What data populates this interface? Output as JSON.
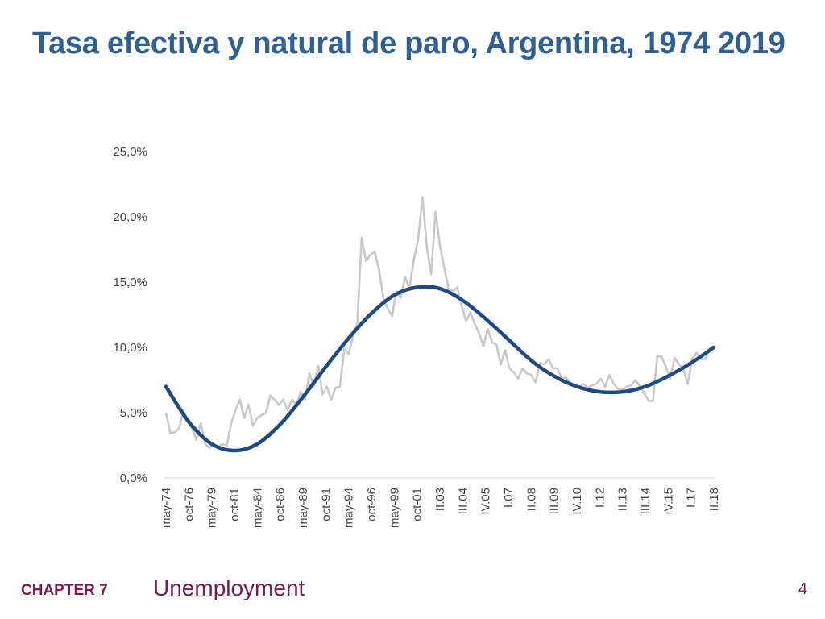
{
  "slide": {
    "title": "Tasa efectiva y natural de paro, Argentina, 1974 2019"
  },
  "footer": {
    "chapter": "CHAPTER 7",
    "topic": "Unemployment",
    "page": "4"
  },
  "colors": {
    "title": "#2e5f95",
    "footer": "#7a1b4a",
    "effective_series": "#c8c8c8",
    "natural_series": "#1f4a80",
    "axis": "#d0d0d0"
  },
  "chart_data": {
    "type": "line",
    "title": "",
    "xlabel": "",
    "ylabel": "",
    "ylim": [
      0,
      25
    ],
    "yticks": [
      "0,0%",
      "5,0%",
      "10,0%",
      "15,0%",
      "20,0%",
      "25,0%"
    ],
    "xticks": [
      "may-74",
      "oct-76",
      "may-79",
      "oct-81",
      "may-84",
      "oct-86",
      "may-89",
      "oct-91",
      "may-94",
      "oct-96",
      "may-99",
      "oct-01",
      "II.03",
      "III.04",
      "IV.05",
      "I.07",
      "II.08",
      "III.09",
      "IV.10",
      "I.12",
      "II.13",
      "III.14",
      "IV.15",
      "I.17",
      "II.18"
    ],
    "grid": false,
    "legend": "none",
    "series": [
      {
        "style": "effective-rate",
        "values": [
          5.0,
          3.4,
          3.5,
          3.8,
          5.2,
          4.3,
          3.8,
          2.9,
          4.2,
          2.6,
          2.3,
          2.6,
          2.4,
          2.6,
          2.5,
          4.2,
          5.2,
          6.0,
          4.6,
          5.6,
          4.0,
          4.6,
          4.8,
          5.0,
          6.3,
          6.0,
          5.6,
          6.0,
          5.2,
          6.0,
          5.6,
          6.6,
          6.0,
          8.0,
          7.0,
          8.6,
          6.4,
          7.0,
          6.0,
          6.9,
          7.0,
          9.9,
          9.5,
          10.8,
          11.8,
          18.4,
          16.6,
          17.1,
          17.3,
          16.0,
          13.8,
          13.0,
          12.4,
          14.3,
          13.8,
          15.4,
          14.5,
          16.7,
          18.3,
          21.5,
          17.7,
          15.6,
          20.4,
          17.8,
          16.1,
          14.5,
          14.3,
          14.6,
          13.2,
          12.0,
          12.7,
          11.8,
          11.1,
          10.1,
          11.4,
          10.4,
          10.2,
          8.7,
          9.8,
          8.4,
          8.1,
          7.6,
          8.4,
          8.0,
          7.9,
          7.3,
          8.8,
          8.7,
          9.1,
          8.4,
          8.4,
          7.6,
          7.7,
          7.3,
          7.1,
          7.0,
          7.2,
          6.9,
          7.1,
          7.2,
          7.6,
          7.0,
          7.9,
          7.2,
          6.8,
          6.8,
          7.0,
          7.1,
          7.5,
          7.0,
          6.5,
          5.9,
          5.9,
          9.3,
          9.3,
          8.5,
          7.6,
          9.2,
          8.7,
          8.3,
          7.2,
          9.1,
          9.6,
          9.1,
          9.1,
          9.9,
          10.1
        ]
      },
      {
        "style": "natural-rate",
        "values": [
          7.0,
          4.3,
          2.6,
          2.1,
          2.6,
          4.1,
          6.2,
          8.5,
          10.7,
          12.6,
          14.0,
          14.6,
          14.5,
          13.6,
          12.2,
          10.6,
          9.0,
          7.8,
          7.0,
          6.6,
          6.6,
          7.0,
          7.8,
          8.8,
          10.0
        ]
      }
    ]
  }
}
